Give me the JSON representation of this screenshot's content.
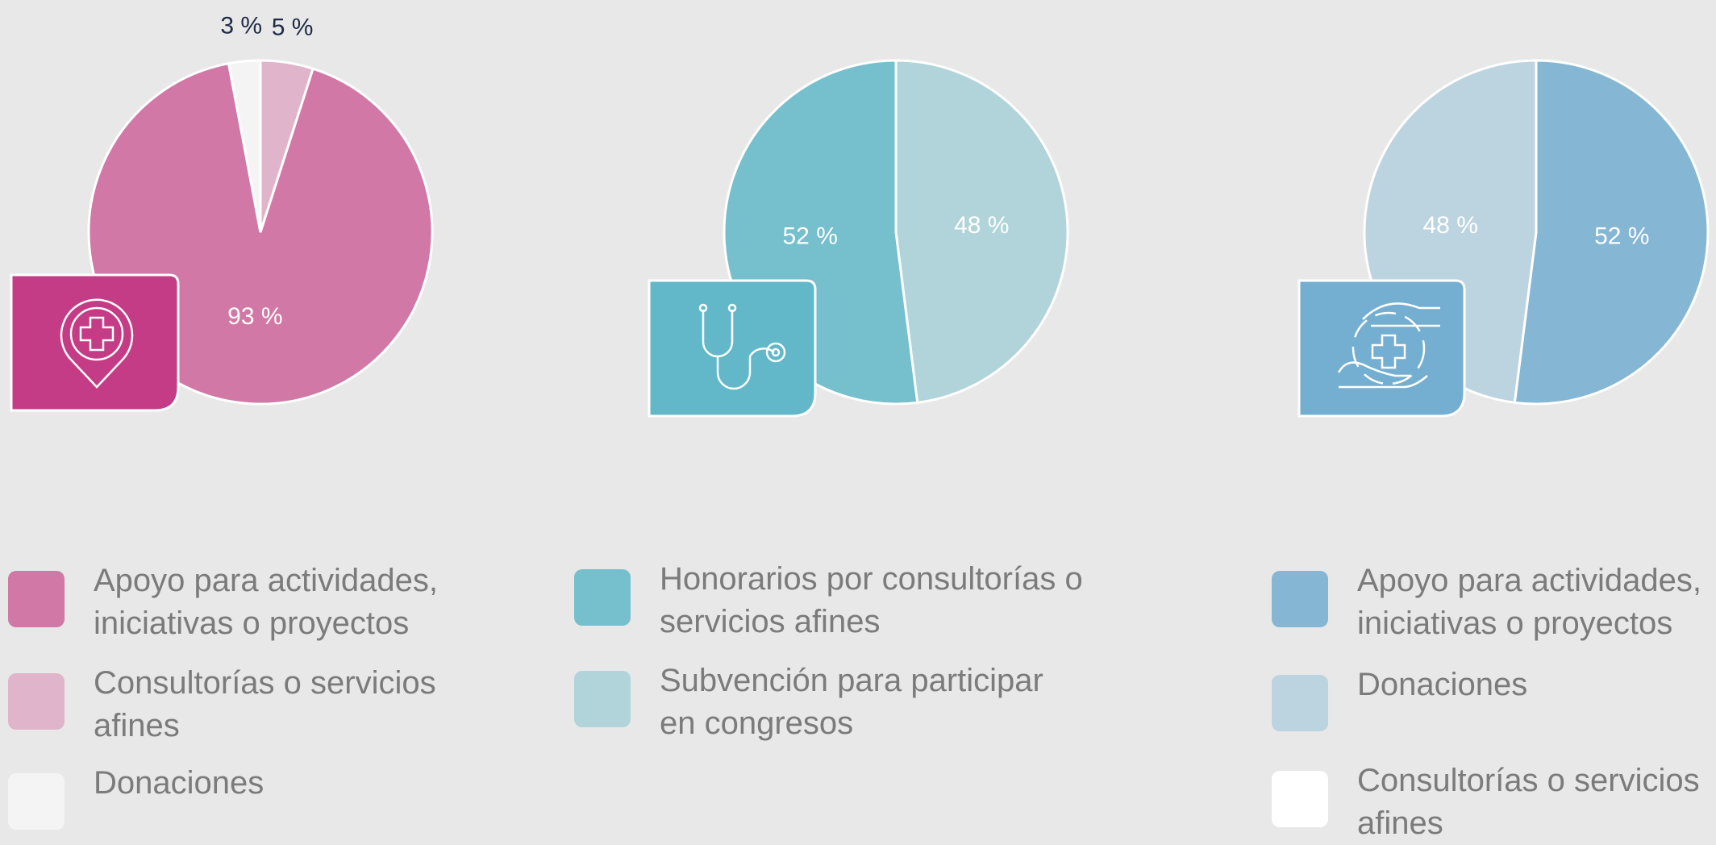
{
  "chart_data": [
    {
      "type": "pie",
      "categories": [
        "Apoyo para actividades,\niniciativas o proyectos",
        "Consultorías o servicios\nafines",
        "Donaciones"
      ],
      "values": [
        93,
        5,
        3
      ],
      "value_labels": [
        "93 %",
        "5 %",
        "3 %"
      ],
      "colors": [
        "#d178a6",
        "#e0b4cb",
        "#f4f4f4"
      ]
    },
    {
      "type": "pie",
      "categories": [
        "Honorarios por consultorías o\nservicios afines",
        "Subvención para participar\nen congresos"
      ],
      "values": [
        52,
        48
      ],
      "value_labels": [
        "52 %",
        "48 %"
      ],
      "colors": [
        "#76bfcc",
        "#b0d4d9"
      ]
    },
    {
      "type": "pie",
      "categories": [
        "Apoyo para actividades,\niniciativas o proyectos",
        "Donaciones",
        "Consultorías o servicios\nafines"
      ],
      "values": [
        52,
        48,
        0
      ],
      "value_labels": [
        "52 %",
        "48 %",
        null
      ],
      "colors": [
        "#85b6d4",
        "#bcd3e0",
        "#ffffff"
      ]
    }
  ]
}
